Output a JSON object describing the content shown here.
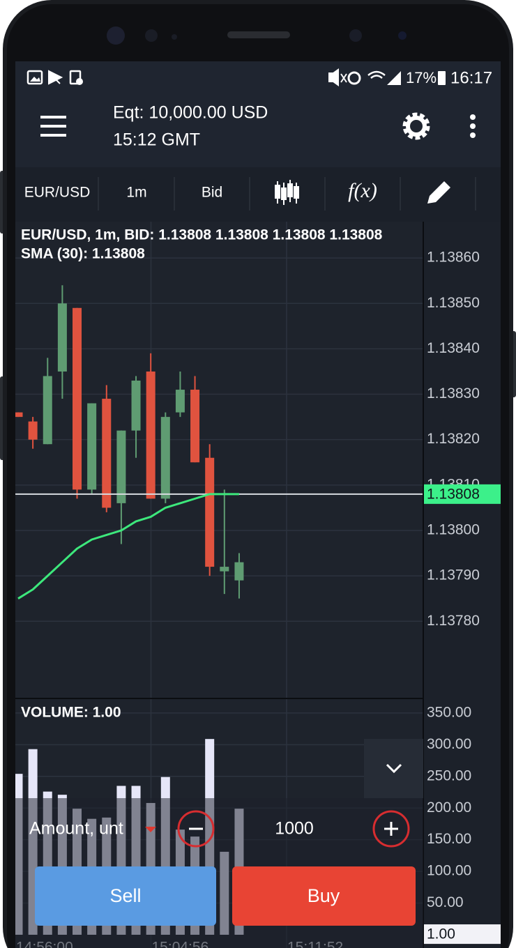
{
  "status_bar": {
    "battery": "17%",
    "time": "16:17"
  },
  "header": {
    "equity": "Eqt: 10,000.00 USD",
    "time": "15:12 GMT"
  },
  "toolbar": {
    "symbol": "EUR/USD",
    "timeframe": "1m",
    "price_type": "Bid",
    "functions": "f(x)"
  },
  "chart_data": [
    {
      "type": "candlestick",
      "title": "EUR/USD, 1m, BID: 1.13808 1.13808 1.13808 1.13808",
      "subtitle": "SMA (30): 1.13808",
      "open": [
        1.13826,
        1.13824,
        1.13819,
        1.13835,
        1.13849,
        1.13809,
        1.13829,
        1.13806,
        1.13822,
        1.13835,
        1.13807,
        1.13826,
        1.13831,
        1.13816,
        1.13791,
        1.13789
      ],
      "high": [
        1.13826,
        1.13825,
        1.13838,
        1.13854,
        1.13849,
        1.13828,
        1.13832,
        1.13822,
        1.13834,
        1.13839,
        1.13826,
        1.13835,
        1.13834,
        1.13819,
        1.13809,
        1.13795
      ],
      "low": [
        1.13825,
        1.13818,
        1.13819,
        1.13829,
        1.13807,
        1.13808,
        1.13804,
        1.13797,
        1.13816,
        1.13807,
        1.13806,
        1.13825,
        1.13815,
        1.1379,
        1.13786,
        1.13785
      ],
      "close": [
        1.13825,
        1.1382,
        1.13834,
        1.1385,
        1.13809,
        1.13828,
        1.13805,
        1.13822,
        1.13833,
        1.13807,
        1.13825,
        1.13831,
        1.13815,
        1.13792,
        1.13792,
        1.13793
      ],
      "up_color": "#5f9c72",
      "down_color": "#e0533f",
      "overlay": {
        "color": "#3de87c",
        "values": [
          1.13785,
          1.13787,
          1.1379,
          1.13793,
          1.13796,
          1.13798,
          1.13799,
          1.138,
          1.13802,
          1.13803,
          1.13805,
          1.13806,
          1.13807,
          1.13808,
          1.13808,
          1.13808
        ]
      },
      "current_price": {
        "value": 1.13808,
        "label": "1.13808"
      },
      "ylim": [
        1.13763,
        1.13868
      ],
      "yticks": [
        {
          "value": 1.1378,
          "label": "1.13780"
        },
        {
          "value": 1.1379,
          "label": "1.13790"
        },
        {
          "value": 1.138,
          "label": "1.13800"
        },
        {
          "value": 1.1381,
          "label": "1.13810"
        },
        {
          "value": 1.1382,
          "label": "1.13820"
        },
        {
          "value": 1.1383,
          "label": "1.13830"
        },
        {
          "value": 1.1384,
          "label": "1.13840"
        },
        {
          "value": 1.1385,
          "label": "1.13850"
        },
        {
          "value": 1.1386,
          "label": "1.13860"
        }
      ],
      "x_labels": [
        "14:56:00",
        "15:04:56",
        "15:11:52"
      ],
      "grid": true
    },
    {
      "type": "bar",
      "title": "VOLUME: 1.00",
      "values": [
        254,
        293,
        226,
        221,
        199,
        183,
        185,
        235,
        235,
        208,
        249,
        166,
        155,
        309,
        131,
        199
      ],
      "color": "#e6e6f8",
      "current_value": {
        "value": 1,
        "label": "1.00"
      },
      "ylim": [
        0,
        373
      ],
      "yticks": [
        {
          "value": 50,
          "label": "50.00"
        },
        {
          "value": 100,
          "label": "100.00"
        },
        {
          "value": 150,
          "label": "150.00"
        },
        {
          "value": 200,
          "label": "200.00"
        },
        {
          "value": 250,
          "label": "250.00"
        },
        {
          "value": 300,
          "label": "300.00"
        },
        {
          "value": 350,
          "label": "350.00"
        }
      ],
      "grid": true
    }
  ],
  "order_panel": {
    "amount_label": "Amount, unt",
    "amount": "1000",
    "sell": "Sell",
    "buy": "Buy"
  }
}
